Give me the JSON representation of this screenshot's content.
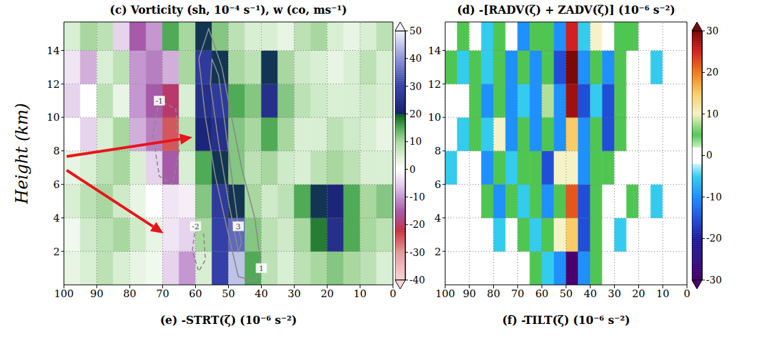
{
  "chart_data": [
    {
      "type": "heatmap",
      "title": "(c) Vorticity (sh, 10⁻⁴ s⁻¹), w (co, ms⁻¹)",
      "y_label": "Height (km)",
      "xlim": [
        100,
        0
      ],
      "xticks": [
        100,
        90,
        80,
        70,
        60,
        50,
        40,
        30,
        20,
        10,
        0
      ],
      "ylim": [
        0,
        15.7
      ],
      "yticks": [
        2,
        4,
        6,
        8,
        10,
        12,
        14
      ],
      "grid": true,
      "heatmap": {
        "x_edges": [
          100,
          95,
          90,
          85,
          80,
          75,
          70,
          65,
          60,
          55,
          50,
          45,
          40,
          35,
          30,
          25,
          20,
          15,
          10,
          5,
          0
        ],
        "y_edges": [
          0,
          2,
          4,
          6,
          8,
          10,
          12,
          14,
          16
        ],
        "cells": [
          [
            3,
            5,
            8,
            5,
            3,
            2,
            -5,
            -10,
            5,
            30,
            45,
            15,
            8,
            5,
            8,
            10,
            12,
            10,
            8,
            5
          ],
          [
            2,
            6,
            8,
            10,
            6,
            3,
            -3,
            -5,
            10,
            30,
            35,
            12,
            8,
            6,
            10,
            18,
            25,
            15,
            10,
            8
          ],
          [
            5,
            8,
            10,
            6,
            3,
            0,
            -3,
            -2,
            12,
            28,
            20,
            10,
            6,
            8,
            15,
            20,
            22,
            15,
            10,
            12
          ],
          [
            3,
            5,
            8,
            10,
            5,
            -5,
            -15,
            5,
            15,
            20,
            12,
            8,
            10,
            6,
            5,
            8,
            10,
            8,
            5,
            5
          ],
          [
            0,
            -5,
            5,
            10,
            -8,
            -12,
            -25,
            8,
            22,
            25,
            12,
            10,
            15,
            10,
            5,
            5,
            8,
            6,
            5,
            3
          ],
          [
            -5,
            0,
            8,
            3,
            -10,
            -15,
            -20,
            5,
            25,
            28,
            15,
            12,
            25,
            12,
            8,
            6,
            5,
            5,
            6,
            5
          ],
          [
            -3,
            -8,
            5,
            8,
            -10,
            -12,
            -8,
            10,
            28,
            20,
            10,
            8,
            20,
            10,
            6,
            5,
            3,
            5,
            8,
            5
          ],
          [
            5,
            10,
            8,
            -5,
            -15,
            -10,
            15,
            10,
            20,
            12,
            8,
            5,
            5,
            3,
            8,
            10,
            5,
            3,
            5,
            8
          ]
        ]
      },
      "colorbar": {
        "lim": [
          -40,
          50
        ],
        "ticks": [
          -40,
          -30,
          -20,
          -10,
          0,
          10,
          20,
          30,
          40,
          50
        ]
      },
      "contours": [
        {
          "level": 1,
          "points": [
            [
              40,
              1
            ],
            [
              42,
              4
            ],
            [
              46,
              7
            ],
            [
              49,
              10
            ],
            [
              52,
              13
            ],
            [
              56,
              15.3
            ],
            [
              59,
              13.5
            ],
            [
              57,
              10
            ],
            [
              54,
              6.5
            ],
            [
              50,
              3
            ],
            [
              47,
              0.5
            ],
            [
              42,
              0.2
            ],
            [
              40,
              1
            ]
          ]
        },
        {
          "level": 3,
          "points": [
            [
              47,
              3.5
            ],
            [
              49,
              6.5
            ],
            [
              51,
              9.5
            ],
            [
              53,
              12.5
            ],
            [
              55,
              13.5
            ],
            [
              55.5,
              12
            ],
            [
              53,
              8.5
            ],
            [
              50,
              5
            ],
            [
              47,
              2
            ],
            [
              46,
              2.5
            ],
            [
              47,
              3.5
            ]
          ]
        },
        {
          "level": -1,
          "points": [
            [
              71,
              11
            ],
            [
              73,
              9
            ],
            [
              71,
              6.5
            ],
            [
              67,
              6
            ],
            [
              65,
              8
            ],
            [
              66,
              10.5
            ],
            [
              71,
              11
            ]
          ]
        },
        {
          "level": -2,
          "points": [
            [
              60,
              3.5
            ],
            [
              61,
              2
            ],
            [
              59,
              0.8
            ],
            [
              57,
              1.5
            ],
            [
              57.5,
              3
            ],
            [
              60,
              3.5
            ]
          ]
        }
      ],
      "annotations": [
        "(e) -STRT(ζ) (10⁻⁶ s⁻²)"
      ]
    },
    {
      "type": "heatmap",
      "title": "(d) -[RADV(ζ) + ZADV(ζ)] (10⁻⁶ s⁻²)",
      "xlim": [
        100,
        0
      ],
      "xticks": [
        100,
        90,
        80,
        70,
        60,
        50,
        40,
        30,
        20,
        10,
        0
      ],
      "ylim": [
        0,
        15.7
      ],
      "yticks": [
        2,
        4,
        6,
        8,
        10,
        12,
        14
      ],
      "grid": true,
      "heatmap": {
        "x_edges": [
          100,
          95,
          90,
          85,
          80,
          75,
          70,
          65,
          60,
          55,
          50,
          45,
          40,
          35,
          30,
          25,
          20,
          15,
          10,
          5,
          0
        ],
        "y_edges": [
          0,
          2,
          4,
          6,
          8,
          10,
          12,
          14,
          16
        ],
        "cells": [
          [
            0,
            0,
            0,
            0,
            0,
            0,
            0,
            5,
            -5,
            -10,
            -30,
            -10,
            5,
            0,
            0,
            0,
            0,
            0,
            0,
            0
          ],
          [
            0,
            0,
            0,
            0,
            -5,
            0,
            5,
            -5,
            5,
            10,
            15,
            -15,
            5,
            0,
            -5,
            0,
            0,
            0,
            0,
            0
          ],
          [
            0,
            0,
            0,
            5,
            -10,
            5,
            -5,
            5,
            -10,
            5,
            22,
            -15,
            5,
            0,
            0,
            5,
            0,
            -5,
            0,
            0
          ],
          [
            -5,
            0,
            0,
            -10,
            5,
            -5,
            5,
            5,
            -15,
            10,
            10,
            -10,
            5,
            5,
            0,
            0,
            0,
            0,
            0,
            0
          ],
          [
            0,
            -5,
            5,
            -5,
            10,
            -10,
            5,
            -10,
            5,
            -10,
            15,
            -10,
            5,
            -15,
            5,
            0,
            0,
            0,
            0,
            0
          ],
          [
            0,
            0,
            5,
            -10,
            5,
            -10,
            -5,
            -10,
            8,
            -10,
            28,
            -15,
            -5,
            -15,
            5,
            0,
            0,
            0,
            0,
            0
          ],
          [
            5,
            -5,
            5,
            -5,
            5,
            -10,
            5,
            -10,
            5,
            -15,
            30,
            -10,
            5,
            -10,
            5,
            0,
            0,
            -5,
            0,
            0
          ],
          [
            0,
            5,
            0,
            -5,
            5,
            0,
            -10,
            5,
            5,
            -10,
            25,
            -5,
            10,
            0,
            5,
            5,
            0,
            0,
            0,
            0
          ]
        ]
      },
      "colorbar": {
        "lim": [
          -30,
          30
        ],
        "ticks": [
          -30,
          -20,
          -10,
          0,
          10,
          20,
          30
        ]
      },
      "annotations": [
        "(f) -TILT(ζ) (10⁻⁶ s⁻²)"
      ]
    }
  ]
}
